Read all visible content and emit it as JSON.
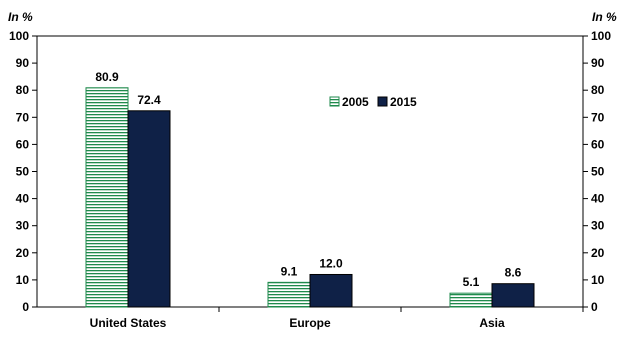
{
  "chart_data": {
    "type": "bar",
    "unit_left": "In %",
    "unit_right": "In %",
    "categories": [
      "United States",
      "Europe",
      "Asia"
    ],
    "series": [
      {
        "name": "2005",
        "values": [
          80.9,
          9.1,
          5.1
        ],
        "data_labels": [
          "80.9",
          "9.1",
          "5.1"
        ],
        "color": "#1f8a4c",
        "pattern": "horizontal-lines"
      },
      {
        "name": "2015",
        "values": [
          72.4,
          12.0,
          8.6
        ],
        "data_labels": [
          "72.4",
          "12.0",
          "8.6"
        ],
        "color": "#0f2147",
        "pattern": "solid"
      }
    ],
    "ylim": [
      0,
      100
    ],
    "yticks": [
      "0",
      "10",
      "20",
      "30",
      "40",
      "50",
      "60",
      "70",
      "80",
      "90",
      "100"
    ],
    "grid": false,
    "legend_position": "top-center"
  }
}
